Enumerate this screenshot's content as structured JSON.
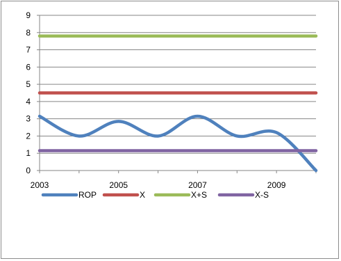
{
  "chart_data": {
    "type": "line",
    "title": "",
    "xlabel": "",
    "ylabel": "",
    "x": [
      2003,
      2004,
      2005,
      2006,
      2007,
      2008,
      2009,
      2010
    ],
    "x_tick_labels": [
      "2003",
      "2005",
      "2007",
      "2009"
    ],
    "ylim": [
      0,
      9
    ],
    "y_tick_labels": [
      "0",
      "1",
      "2",
      "3",
      "4",
      "5",
      "6",
      "7",
      "8",
      "9"
    ],
    "grid": "horizontal",
    "legend_position": "bottom",
    "smooth": true,
    "series": [
      {
        "name": "ROP",
        "color": "#4f81bd",
        "values": [
          3.15,
          2.0,
          2.85,
          2.0,
          3.15,
          2.0,
          2.2,
          0.0
        ]
      },
      {
        "name": "X",
        "color": "#c0504d",
        "values": [
          4.5,
          4.5,
          4.5,
          4.5,
          4.5,
          4.5,
          4.5,
          4.5
        ]
      },
      {
        "name": "X+S",
        "color": "#9bbb59",
        "values": [
          7.8,
          7.8,
          7.8,
          7.8,
          7.8,
          7.8,
          7.8,
          7.8
        ]
      },
      {
        "name": "X-S",
        "color": "#8064a2",
        "values": [
          1.15,
          1.15,
          1.15,
          1.15,
          1.15,
          1.15,
          1.15,
          1.15
        ]
      }
    ]
  }
}
